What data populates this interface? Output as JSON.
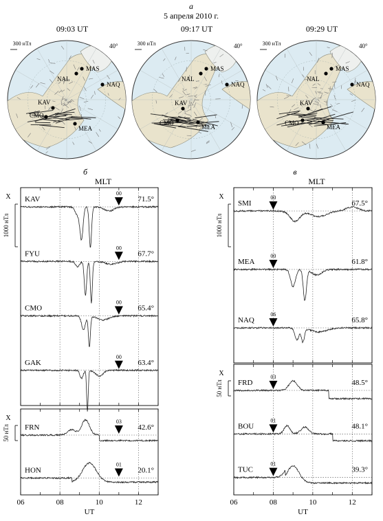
{
  "top": {
    "panel_letter": "а",
    "date": "5 апреля 2010 г.",
    "scale_label": "300 нТл",
    "lat_label": "40°",
    "maps": [
      {
        "time": "09:03 UT",
        "stations": [
          {
            "code": "MAS",
            "dx": 22,
            "dy": -45,
            "lx": 6,
            "ly": 0
          },
          {
            "code": "NAL",
            "dx": 14,
            "dy": -38,
            "lx": -28,
            "ly": 8
          },
          {
            "code": "NAQ",
            "dx": 52,
            "dy": -22,
            "lx": 6,
            "ly": 0
          },
          {
            "code": "KAV",
            "dx": -20,
            "dy": 12,
            "lx": -22,
            "ly": -8
          },
          {
            "code": "CMO",
            "dx": -30,
            "dy": 25,
            "lx": -24,
            "ly": -2
          },
          {
            "code": "MEA",
            "dx": 12,
            "dy": 35,
            "lx": 5,
            "ly": 7
          }
        ]
      },
      {
        "time": "09:17 UT",
        "stations": [
          {
            "code": "MAS",
            "dx": 22,
            "dy": -45,
            "lx": 6,
            "ly": 0
          },
          {
            "code": "NAL",
            "dx": 14,
            "dy": -38,
            "lx": -28,
            "ly": 8
          },
          {
            "code": "NAQ",
            "dx": 52,
            "dy": -22,
            "lx": 6,
            "ly": 0
          },
          {
            "code": "KAV",
            "dx": -12,
            "dy": 13,
            "lx": -12,
            "ly": -8
          },
          {
            "code": "CMO",
            "dx": -20,
            "dy": 30,
            "lx": -26,
            "ly": 4
          },
          {
            "code": "MEA",
            "dx": 10,
            "dy": 33,
            "lx": 5,
            "ly": 7
          }
        ]
      },
      {
        "time": "09:29 UT",
        "stations": [
          {
            "code": "MAS",
            "dx": 22,
            "dy": -45,
            "lx": 6,
            "ly": 0
          },
          {
            "code": "NAL",
            "dx": 14,
            "dy": -38,
            "lx": -28,
            "ly": 8
          },
          {
            "code": "NAQ",
            "dx": 52,
            "dy": -22,
            "lx": 6,
            "ly": 0
          },
          {
            "code": "KAV",
            "dx": -12,
            "dy": 13,
            "lx": -12,
            "ly": -8
          },
          {
            "code": "CMO",
            "dx": -20,
            "dy": 30,
            "lx": -26,
            "ly": 4
          },
          {
            "code": "MEA",
            "dx": 10,
            "dy": 33,
            "lx": 5,
            "ly": 7
          }
        ]
      }
    ]
  },
  "left": {
    "panel_letter": "б",
    "mlt_label": "MLT",
    "x_axis_label": "UT",
    "component_label": "X",
    "x_ticks": [
      "06",
      "08",
      "10",
      "12"
    ],
    "x_range": [
      6,
      13
    ],
    "upper": {
      "scale_label": "1000 нТл",
      "traces": [
        {
          "code": "KAV",
          "lat": "71.5°",
          "mlt": "00",
          "mlt_hour": 11.0
        },
        {
          "code": "FYU",
          "lat": "67.7°",
          "mlt": "00",
          "mlt_hour": 11.0
        },
        {
          "code": "CMO",
          "lat": "65.4°",
          "mlt": "00",
          "mlt_hour": 11.0
        },
        {
          "code": "GAK",
          "lat": "63.4°",
          "mlt": "00",
          "mlt_hour": 11.0
        }
      ]
    },
    "lower": {
      "scale_label": "50 нТл",
      "traces": [
        {
          "code": "FRN",
          "lat": "42.6°",
          "mlt": "03",
          "mlt_hour": 11.0
        },
        {
          "code": "HON",
          "lat": "20.1°",
          "mlt": "01",
          "mlt_hour": 11.0
        }
      ]
    }
  },
  "right": {
    "panel_letter": "в",
    "mlt_label": "MLT",
    "x_axis_label": "UT",
    "component_label": "X",
    "x_ticks": [
      "06",
      "08",
      "10",
      "12"
    ],
    "x_range": [
      6,
      13
    ],
    "upper": {
      "scale_label": "1000 нТл",
      "traces": [
        {
          "code": "SMI",
          "lat": "67.5°",
          "mlt": "00",
          "mlt_hour": 8.0
        },
        {
          "code": "MEA",
          "lat": "61.8°",
          "mlt": "00",
          "mlt_hour": 8.0
        },
        {
          "code": "NAQ",
          "lat": "65.8°",
          "mlt": "06",
          "mlt_hour": 8.0
        }
      ]
    },
    "lower": {
      "scale_label": "50 нТл",
      "traces": [
        {
          "code": "FRD",
          "lat": "48.5°",
          "mlt": "03",
          "mlt_hour": 8.0
        },
        {
          "code": "BOU",
          "lat": "48.1°",
          "mlt": "01",
          "mlt_hour": 8.0
        },
        {
          "code": "TUC",
          "lat": "39.3°",
          "mlt": "01",
          "mlt_hour": 8.0
        }
      ]
    }
  }
}
